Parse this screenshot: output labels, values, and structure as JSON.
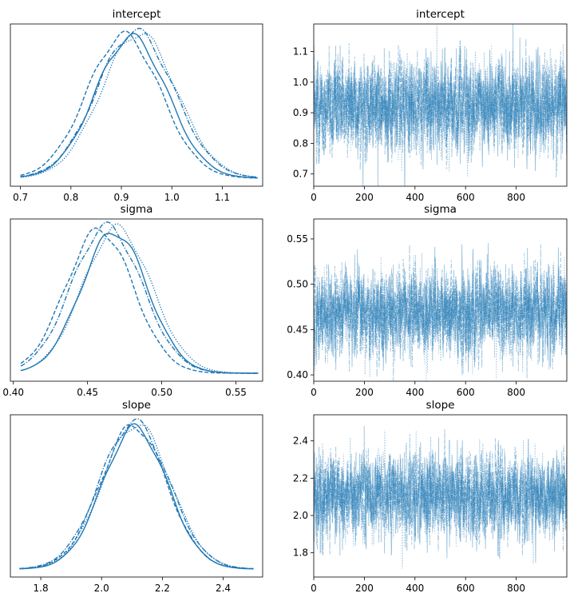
{
  "color": "#1f77b4",
  "chart_data": [
    {
      "type": "line",
      "kind": "density",
      "title": "intercept",
      "x_ticks": [
        0.7,
        0.8,
        0.9,
        1.0,
        1.1
      ],
      "xlim": [
        0.68,
        1.18
      ],
      "mean": 0.925,
      "sd": 0.074,
      "support": [
        0.7,
        1.17
      ],
      "chains": [
        {
          "line_style": "solid",
          "peak": 0.92
        },
        {
          "line_style": "dashed",
          "peak": 0.905
        },
        {
          "line_style": "dotted",
          "peak": 0.935
        },
        {
          "line_style": "dashdot",
          "peak": 0.928
        }
      ]
    },
    {
      "type": "line",
      "kind": "trace",
      "title": "intercept",
      "x_ticks": [
        0,
        200,
        400,
        600,
        800
      ],
      "xlim": [
        0,
        1000
      ],
      "y_ticks": [
        "0.7",
        "0.8",
        "0.9",
        "1.0",
        "1.1"
      ],
      "y_tick_values": [
        0.7,
        0.8,
        0.9,
        1.0,
        1.1
      ],
      "ylim": [
        0.66,
        1.19
      ],
      "draws": 1000,
      "mean": 0.925,
      "sd": 0.074,
      "chains": [
        "solid",
        "dashed",
        "dotted",
        "dashdot"
      ]
    },
    {
      "type": "line",
      "kind": "density",
      "title": "sigma",
      "x_ticks": [
        0.4,
        0.45,
        0.5,
        0.55
      ],
      "xlim": [
        0.398,
        0.568
      ],
      "mean": 0.469,
      "sd": 0.023,
      "support": [
        0.405,
        0.565
      ],
      "chains": [
        {
          "line_style": "solid",
          "peak": 0.468
        },
        {
          "line_style": "dashed",
          "peak": 0.458
        },
        {
          "line_style": "dotted",
          "peak": 0.47
        },
        {
          "line_style": "dashdot",
          "peak": 0.463
        }
      ]
    },
    {
      "type": "line",
      "kind": "trace",
      "title": "sigma",
      "x_ticks": [
        0,
        200,
        400,
        600,
        800
      ],
      "xlim": [
        0,
        1000
      ],
      "y_ticks": [
        "0.40",
        "0.45",
        "0.50",
        "0.55"
      ],
      "y_tick_values": [
        0.4,
        0.45,
        0.5,
        0.55
      ],
      "ylim": [
        0.393,
        0.572
      ],
      "draws": 1000,
      "mean": 0.469,
      "sd": 0.023,
      "chains": [
        "solid",
        "dashed",
        "dotted",
        "dashdot"
      ]
    },
    {
      "type": "line",
      "kind": "density",
      "title": "slope",
      "x_ticks": [
        1.8,
        2.0,
        2.2,
        2.4
      ],
      "xlim": [
        1.7,
        2.53
      ],
      "mean": 2.11,
      "sd": 0.11,
      "support": [
        1.73,
        2.5
      ],
      "chains": [
        {
          "line_style": "solid",
          "peak": 2.11
        },
        {
          "line_style": "dashed",
          "peak": 2.105
        },
        {
          "line_style": "dotted",
          "peak": 2.115
        },
        {
          "line_style": "dashdot",
          "peak": 2.108
        }
      ]
    },
    {
      "type": "line",
      "kind": "trace",
      "title": "slope",
      "x_ticks": [
        0,
        200,
        400,
        600,
        800
      ],
      "xlim": [
        0,
        1000
      ],
      "y_ticks": [
        "1.8",
        "2.0",
        "2.2",
        "2.4"
      ],
      "y_tick_values": [
        1.8,
        2.0,
        2.2,
        2.4
      ],
      "ylim": [
        1.67,
        2.54
      ],
      "draws": 1000,
      "mean": 2.11,
      "sd": 0.11,
      "chains": [
        "solid",
        "dashed",
        "dotted",
        "dashdot"
      ]
    }
  ]
}
